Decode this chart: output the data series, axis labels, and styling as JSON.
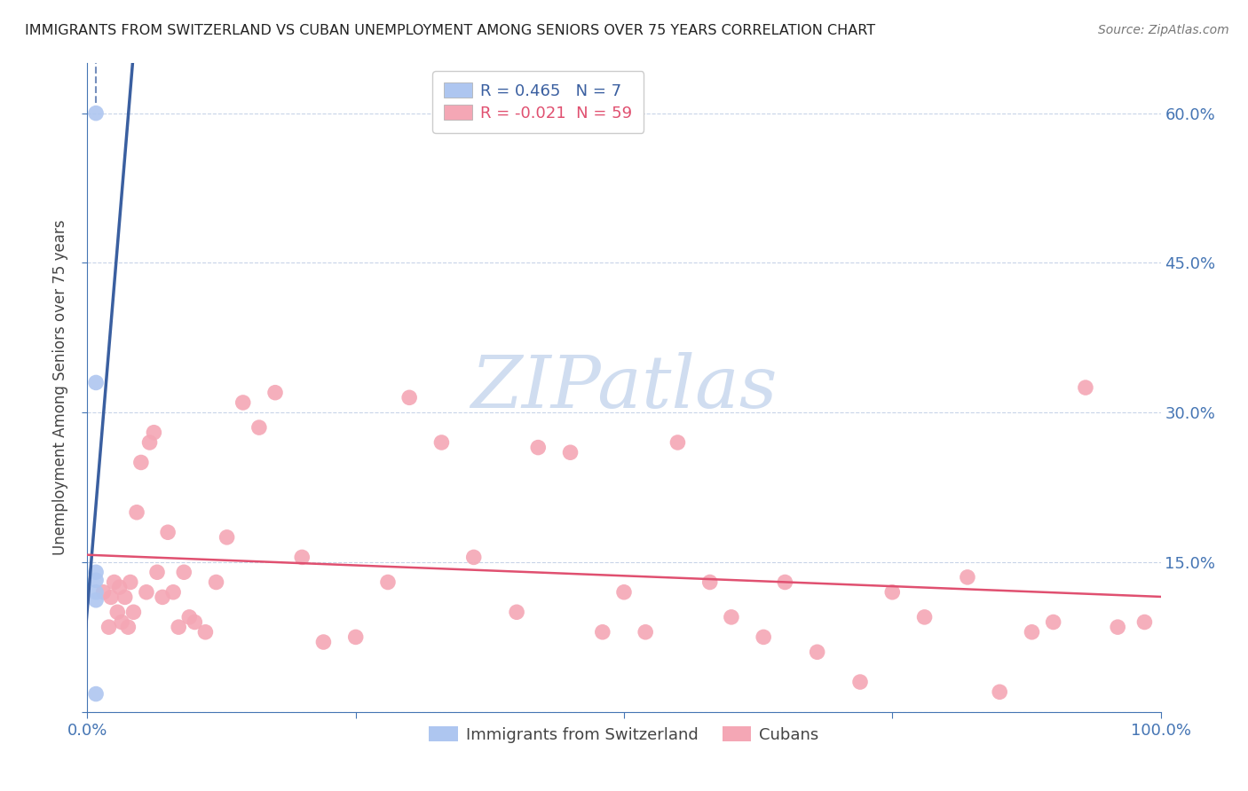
{
  "title": "IMMIGRANTS FROM SWITZERLAND VS CUBAN UNEMPLOYMENT AMONG SENIORS OVER 75 YEARS CORRELATION CHART",
  "source": "Source: ZipAtlas.com",
  "ylabel": "Unemployment Among Seniors over 75 years",
  "xlim": [
    0.0,
    1.0
  ],
  "ylim": [
    0.0,
    0.65
  ],
  "yticks": [
    0.0,
    0.15,
    0.3,
    0.45,
    0.6
  ],
  "swiss_color": "#aec6f0",
  "cuban_color": "#f4a7b5",
  "swiss_line_color": "#3a5fa0",
  "cuban_line_color": "#e05070",
  "swiss_R": 0.465,
  "swiss_N": 7,
  "cuban_R": -0.021,
  "cuban_N": 59,
  "swiss_x": [
    0.008,
    0.008,
    0.008,
    0.008,
    0.008,
    0.008,
    0.008
  ],
  "swiss_y": [
    0.6,
    0.33,
    0.14,
    0.132,
    0.12,
    0.112,
    0.018
  ],
  "cuban_x": [
    0.015,
    0.02,
    0.022,
    0.025,
    0.028,
    0.03,
    0.032,
    0.035,
    0.038,
    0.04,
    0.043,
    0.046,
    0.05,
    0.055,
    0.058,
    0.062,
    0.065,
    0.07,
    0.075,
    0.08,
    0.085,
    0.09,
    0.095,
    0.1,
    0.11,
    0.12,
    0.13,
    0.145,
    0.16,
    0.175,
    0.2,
    0.22,
    0.25,
    0.28,
    0.3,
    0.33,
    0.36,
    0.4,
    0.42,
    0.45,
    0.48,
    0.5,
    0.52,
    0.55,
    0.58,
    0.6,
    0.63,
    0.65,
    0.68,
    0.72,
    0.75,
    0.78,
    0.82,
    0.85,
    0.88,
    0.9,
    0.93,
    0.96,
    0.985
  ],
  "cuban_y": [
    0.12,
    0.085,
    0.115,
    0.13,
    0.1,
    0.125,
    0.09,
    0.115,
    0.085,
    0.13,
    0.1,
    0.2,
    0.25,
    0.12,
    0.27,
    0.28,
    0.14,
    0.115,
    0.18,
    0.12,
    0.085,
    0.14,
    0.095,
    0.09,
    0.08,
    0.13,
    0.175,
    0.31,
    0.285,
    0.32,
    0.155,
    0.07,
    0.075,
    0.13,
    0.315,
    0.27,
    0.155,
    0.1,
    0.265,
    0.26,
    0.08,
    0.12,
    0.08,
    0.27,
    0.13,
    0.095,
    0.075,
    0.13,
    0.06,
    0.03,
    0.12,
    0.095,
    0.135,
    0.02,
    0.08,
    0.09,
    0.325,
    0.085,
    0.09
  ],
  "legend_swiss_label": "Immigrants from Switzerland",
  "legend_cuban_label": "Cubans",
  "background_color": "#ffffff",
  "grid_color": "#c8d4e8",
  "axis_color": "#4575b4",
  "watermark_color": "#d0ddf0"
}
